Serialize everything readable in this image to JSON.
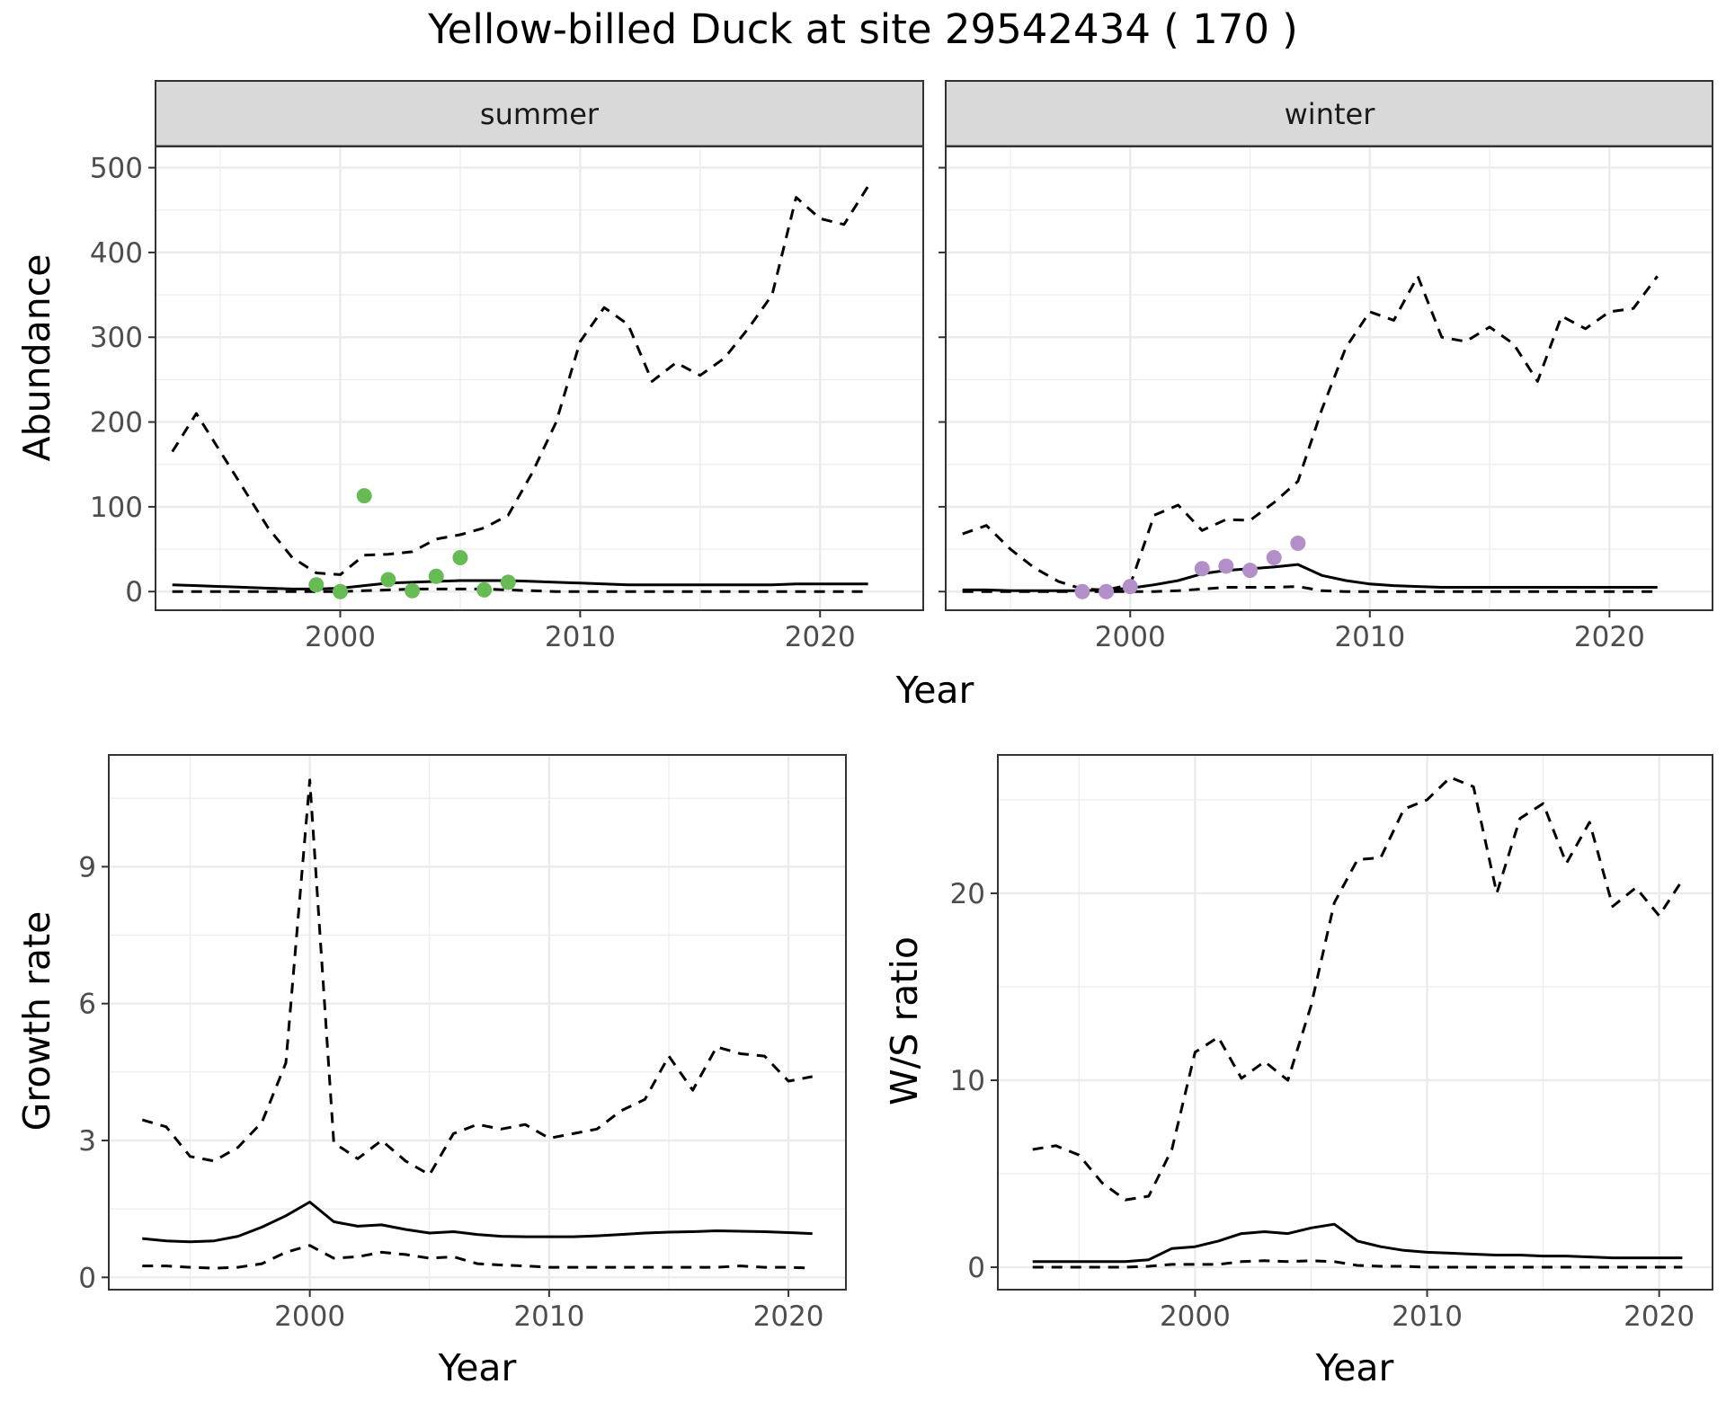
{
  "title": "Yellow-billed Duck at site 29542434 ( 170 )",
  "colors": {
    "summer_points": "#66bb55",
    "winter_points": "#b28fc8",
    "lines": "#000000",
    "strip_background": "#d9d9d9",
    "grid": "#ebebeb"
  },
  "chart_data": [
    {
      "type": "line",
      "panel": "summer",
      "strip_label": "summer",
      "xlabel": "Year",
      "ylabel": "Abundance",
      "xlim": [
        1992.3,
        2024.3
      ],
      "ylim": [
        -22,
        525
      ],
      "x_ticks": [
        2000,
        2010,
        2020
      ],
      "y_ticks": [
        0,
        100,
        200,
        300,
        400,
        500
      ],
      "grid": true,
      "series": [
        {
          "role": "estimate",
          "style": "solid",
          "x": [
            1993,
            1994,
            1995,
            1996,
            1997,
            1998,
            1999,
            2000,
            2001,
            2002,
            2003,
            2004,
            2005,
            2006,
            2007,
            2008,
            2009,
            2010,
            2011,
            2012,
            2013,
            2014,
            2015,
            2016,
            2017,
            2018,
            2019,
            2020,
            2021,
            2022
          ],
          "y": [
            8,
            7,
            6,
            5,
            4,
            3,
            3,
            4,
            7,
            10,
            11,
            12,
            13,
            13,
            13,
            12,
            11,
            10,
            9,
            8,
            8,
            8,
            8,
            8,
            8,
            8,
            9,
            9,
            9,
            9
          ]
        },
        {
          "role": "upper",
          "style": "dashed",
          "x": [
            1993,
            1994,
            1995,
            1996,
            1997,
            1998,
            1999,
            2000,
            2001,
            2002,
            2003,
            2004,
            2005,
            2006,
            2007,
            2008,
            2009,
            2010,
            2011,
            2012,
            2013,
            2014,
            2015,
            2016,
            2017,
            2018,
            2019,
            2020,
            2021,
            2022
          ],
          "y": [
            165,
            210,
            165,
            120,
            75,
            40,
            22,
            20,
            43,
            44,
            47,
            62,
            67,
            75,
            90,
            140,
            200,
            295,
            335,
            315,
            248,
            270,
            255,
            275,
            310,
            350,
            465,
            440,
            433,
            478
          ]
        },
        {
          "role": "lower",
          "style": "dashed",
          "x": [
            1993,
            1994,
            1995,
            1996,
            1997,
            1998,
            1999,
            2000,
            2001,
            2002,
            2003,
            2004,
            2005,
            2006,
            2007,
            2008,
            2009,
            2010,
            2011,
            2012,
            2013,
            2014,
            2015,
            2016,
            2017,
            2018,
            2019,
            2020,
            2021,
            2022
          ],
          "y": [
            0,
            0,
            0,
            0,
            0,
            0,
            0,
            0,
            1,
            2,
            3,
            3,
            3,
            3,
            2,
            1,
            0,
            0,
            0,
            0,
            0,
            0,
            0,
            0,
            0,
            0,
            0,
            0,
            0,
            0
          ]
        }
      ],
      "points": {
        "x": [
          1999,
          2000,
          2001,
          2002,
          2003,
          2004,
          2005,
          2006,
          2007
        ],
        "y": [
          8,
          0,
          113,
          14,
          1,
          18,
          40,
          2,
          11
        ]
      }
    },
    {
      "type": "line",
      "panel": "winter",
      "strip_label": "winter",
      "xlabel": "Year",
      "ylabel": "",
      "xlim": [
        1992.3,
        2024.3
      ],
      "ylim": [
        -22,
        525
      ],
      "x_ticks": [
        2000,
        2010,
        2020
      ],
      "y_ticks": [
        0,
        100,
        200,
        300,
        400,
        500
      ],
      "grid": true,
      "series": [
        {
          "role": "estimate",
          "style": "solid",
          "x": [
            1993,
            1994,
            1995,
            1996,
            1997,
            1998,
            1999,
            2000,
            2001,
            2002,
            2003,
            2004,
            2005,
            2006,
            2007,
            2008,
            2009,
            2010,
            2011,
            2012,
            2013,
            2014,
            2015,
            2016,
            2017,
            2018,
            2019,
            2020,
            2021,
            2022
          ],
          "y": [
            2,
            2,
            1,
            1,
            1,
            1,
            2,
            4,
            8,
            13,
            21,
            25,
            27,
            29,
            32,
            19,
            13,
            9,
            7,
            6,
            5,
            5,
            5,
            5,
            5,
            5,
            5,
            5,
            5,
            5
          ]
        },
        {
          "role": "upper",
          "style": "dashed",
          "x": [
            1993,
            1994,
            1995,
            1996,
            1997,
            1998,
            1999,
            2000,
            2001,
            2002,
            2003,
            2004,
            2005,
            2006,
            2007,
            2008,
            2009,
            2010,
            2011,
            2012,
            2013,
            2014,
            2015,
            2016,
            2017,
            2018,
            2019,
            2020,
            2021,
            2022
          ],
          "y": [
            68,
            78,
            50,
            28,
            12,
            3,
            2,
            8,
            90,
            102,
            72,
            85,
            84,
            105,
            130,
            215,
            288,
            330,
            320,
            372,
            300,
            295,
            312,
            292,
            248,
            325,
            310,
            330,
            334,
            372
          ]
        },
        {
          "role": "lower",
          "style": "dashed",
          "x": [
            1993,
            1994,
            1995,
            1996,
            1997,
            1998,
            1999,
            2000,
            2001,
            2002,
            2003,
            2004,
            2005,
            2006,
            2007,
            2008,
            2009,
            2010,
            2011,
            2012,
            2013,
            2014,
            2015,
            2016,
            2017,
            2018,
            2019,
            2020,
            2021,
            2022
          ],
          "y": [
            0,
            0,
            0,
            0,
            0,
            0,
            0,
            0,
            0,
            1,
            3,
            5,
            5,
            5,
            6,
            1,
            0,
            0,
            0,
            0,
            0,
            0,
            0,
            0,
            0,
            0,
            0,
            0,
            0,
            0
          ]
        }
      ],
      "points": {
        "x": [
          1998,
          1999,
          2000,
          2003,
          2004,
          2005,
          2006,
          2007
        ],
        "y": [
          0,
          0,
          6,
          27,
          30,
          25,
          40,
          57
        ]
      }
    },
    {
      "type": "line",
      "panel": "growth",
      "xlabel": "Year",
      "ylabel": "Growth rate",
      "xlim": [
        1991.6,
        2022.4
      ],
      "ylim": [
        -0.27,
        11.45
      ],
      "x_ticks": [
        2000,
        2010,
        2020
      ],
      "y_ticks": [
        0,
        3,
        6,
        9
      ],
      "grid": true,
      "series": [
        {
          "role": "estimate",
          "style": "solid",
          "x": [
            1993,
            1994,
            1995,
            1996,
            1997,
            1998,
            1999,
            2000,
            2001,
            2002,
            2003,
            2004,
            2005,
            2006,
            2007,
            2008,
            2009,
            2010,
            2011,
            2012,
            2013,
            2014,
            2015,
            2016,
            2017,
            2018,
            2019,
            2020,
            2021
          ],
          "y": [
            0.85,
            0.8,
            0.78,
            0.8,
            0.9,
            1.1,
            1.35,
            1.65,
            1.22,
            1.12,
            1.15,
            1.05,
            0.97,
            1.0,
            0.94,
            0.9,
            0.89,
            0.89,
            0.89,
            0.91,
            0.94,
            0.97,
            0.99,
            1.0,
            1.02,
            1.01,
            1.0,
            0.98,
            0.96
          ]
        },
        {
          "role": "upper",
          "style": "dashed",
          "x": [
            1993,
            1994,
            1995,
            1996,
            1997,
            1998,
            1999,
            2000,
            2001,
            2002,
            2003,
            2004,
            2005,
            2006,
            2007,
            2008,
            2009,
            2010,
            2011,
            2012,
            2013,
            2014,
            2015,
            2016,
            2017,
            2018,
            2019,
            2020,
            2021
          ],
          "y": [
            3.45,
            3.3,
            2.65,
            2.55,
            2.85,
            3.4,
            4.7,
            10.9,
            2.95,
            2.6,
            3.0,
            2.55,
            2.25,
            3.15,
            3.35,
            3.25,
            3.35,
            3.05,
            3.15,
            3.25,
            3.65,
            3.9,
            4.85,
            4.1,
            5.05,
            4.9,
            4.85,
            4.3,
            4.4
          ]
        },
        {
          "role": "lower",
          "style": "dashed",
          "x": [
            1993,
            1994,
            1995,
            1996,
            1997,
            1998,
            1999,
            2000,
            2001,
            2002,
            2003,
            2004,
            2005,
            2006,
            2007,
            2008,
            2009,
            2010,
            2011,
            2012,
            2013,
            2014,
            2015,
            2016,
            2017,
            2018,
            2019,
            2020,
            2021
          ],
          "y": [
            0.25,
            0.25,
            0.22,
            0.2,
            0.22,
            0.3,
            0.55,
            0.7,
            0.42,
            0.45,
            0.55,
            0.5,
            0.42,
            0.45,
            0.3,
            0.27,
            0.25,
            0.22,
            0.22,
            0.22,
            0.22,
            0.22,
            0.22,
            0.22,
            0.22,
            0.25,
            0.22,
            0.22,
            0.2
          ]
        }
      ]
    },
    {
      "type": "line",
      "panel": "ratio",
      "xlabel": "Year",
      "ylabel": "W/S ratio",
      "xlim": [
        1991.5,
        2022.3
      ],
      "ylim": [
        -1.2,
        27.4
      ],
      "x_ticks": [
        2000,
        2010,
        2020
      ],
      "y_ticks": [
        0,
        10,
        20
      ],
      "grid": true,
      "series": [
        {
          "role": "estimate",
          "style": "solid",
          "x": [
            1993,
            1994,
            1995,
            1996,
            1997,
            1998,
            1999,
            2000,
            2001,
            2002,
            2003,
            2004,
            2005,
            2006,
            2007,
            2008,
            2009,
            2010,
            2011,
            2012,
            2013,
            2014,
            2015,
            2016,
            2017,
            2018,
            2019,
            2020,
            2021
          ],
          "y": [
            0.3,
            0.3,
            0.3,
            0.3,
            0.3,
            0.4,
            1.0,
            1.1,
            1.4,
            1.8,
            1.9,
            1.8,
            2.1,
            2.3,
            1.4,
            1.1,
            0.9,
            0.8,
            0.75,
            0.7,
            0.65,
            0.65,
            0.6,
            0.6,
            0.55,
            0.5,
            0.5,
            0.5,
            0.5
          ]
        },
        {
          "role": "upper",
          "style": "dashed",
          "x": [
            1993,
            1994,
            1995,
            1996,
            1997,
            1998,
            1999,
            2000,
            2001,
            2002,
            2003,
            2004,
            2005,
            2006,
            2007,
            2008,
            2009,
            2010,
            2011,
            2012,
            2013,
            2014,
            2015,
            2016,
            2017,
            2018,
            2019,
            2020,
            2021
          ],
          "y": [
            6.3,
            6.5,
            6.0,
            4.5,
            3.6,
            3.8,
            6.3,
            11.5,
            12.3,
            10.1,
            11.0,
            10.0,
            14.0,
            19.5,
            21.8,
            21.9,
            24.5,
            25.0,
            26.2,
            25.7,
            20.0,
            24.0,
            24.8,
            21.6,
            23.8,
            19.3,
            20.3,
            18.8,
            20.7
          ]
        },
        {
          "role": "lower",
          "style": "dashed",
          "x": [
            1993,
            1994,
            1995,
            1996,
            1997,
            1998,
            1999,
            2000,
            2001,
            2002,
            2003,
            2004,
            2005,
            2006,
            2007,
            2008,
            2009,
            2010,
            2011,
            2012,
            2013,
            2014,
            2015,
            2016,
            2017,
            2018,
            2019,
            2020,
            2021
          ],
          "y": [
            0.0,
            0.0,
            0.0,
            0.0,
            0.0,
            0.05,
            0.15,
            0.15,
            0.15,
            0.3,
            0.35,
            0.3,
            0.35,
            0.3,
            0.1,
            0.05,
            0.05,
            0.0,
            0.0,
            0.0,
            0.0,
            0.0,
            0.0,
            0.0,
            0.0,
            0.0,
            0.0,
            0.0,
            0.0
          ]
        }
      ]
    }
  ]
}
